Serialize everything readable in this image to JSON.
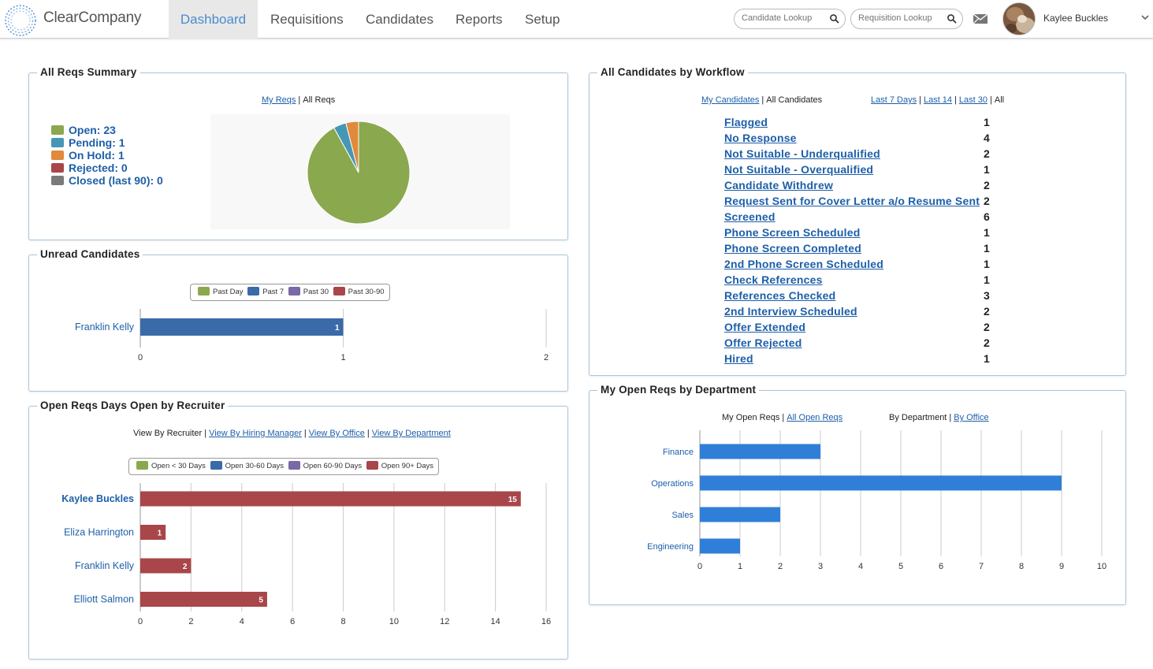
{
  "app": {
    "name": "ClearCompany"
  },
  "nav": {
    "items": [
      {
        "label": "Dashboard",
        "active": true
      },
      {
        "label": "Requisitions",
        "active": false
      },
      {
        "label": "Candidates",
        "active": false
      },
      {
        "label": "Reports",
        "active": false
      },
      {
        "label": "Setup",
        "active": false
      }
    ]
  },
  "header": {
    "candidate_lookup_placeholder": "Candidate Lookup",
    "requisition_lookup_placeholder": "Requisition Lookup",
    "user_name": "Kaylee Buckles"
  },
  "colors": {
    "accent": "#4a8ccf",
    "link": "#1d5fa8",
    "green": "#8aa84e",
    "teal": "#4697b5",
    "orange": "#e08a3c",
    "red": "#a8464a",
    "gray": "#7a7a7a",
    "blue": "#3b6aa8",
    "purple": "#7b68a6",
    "dept_bar": "#2f7fd8"
  },
  "reqs_summary": {
    "title": "All Reqs Summary",
    "filter": {
      "my_reqs": "My Reqs",
      "sep": "|",
      "all_reqs": "All Reqs"
    },
    "legend": [
      {
        "label": "Open: 23",
        "color": "#8aa84e"
      },
      {
        "label": "Pending: 1",
        "color": "#4697b5"
      },
      {
        "label": "On Hold: 1",
        "color": "#e08a3c"
      },
      {
        "label": "Rejected: 0",
        "color": "#a8464a"
      },
      {
        "label": "Closed (last 90): 0",
        "color": "#7a7a7a"
      }
    ],
    "chart_data": {
      "type": "pie",
      "title": "",
      "categories": [
        "Open",
        "Pending",
        "On Hold",
        "Rejected",
        "Closed (last 90)"
      ],
      "values": [
        23,
        1,
        1,
        0,
        0
      ]
    }
  },
  "unread": {
    "title": "Unread Candidates",
    "legend": [
      {
        "label": "Past Day",
        "color": "#8aa84e"
      },
      {
        "label": "Past 7",
        "color": "#3b6aa8"
      },
      {
        "label": "Past 30",
        "color": "#7b68a6"
      },
      {
        "label": "Past 30-90",
        "color": "#a8464a"
      }
    ],
    "chart_data": {
      "type": "bar",
      "orientation": "horizontal",
      "categories": [
        "Franklin Kelly"
      ],
      "series": [
        {
          "name": "Past 7",
          "values": [
            1
          ]
        }
      ],
      "xlim": [
        0,
        2
      ],
      "xticks": [
        "0",
        "1",
        "2"
      ],
      "data_labels": [
        "1"
      ]
    }
  },
  "days_open": {
    "title": "Open Reqs Days Open by Recruiter",
    "views": {
      "recruiter": "View By Recruiter",
      "hiring_manager": "View By Hiring Manager",
      "office": "View By Office",
      "department": "View By Department",
      "sep": "|"
    },
    "legend": [
      {
        "label": "Open < 30 Days",
        "color": "#8aa84e"
      },
      {
        "label": "Open 30-60 Days",
        "color": "#3b6aa8"
      },
      {
        "label": "Open 60-90 Days",
        "color": "#7b68a6"
      },
      {
        "label": "Open 90+ Days",
        "color": "#a8464a"
      }
    ],
    "chart_data": {
      "type": "bar",
      "orientation": "horizontal",
      "categories": [
        "Kaylee Buckles",
        "Eliza Harrington",
        "Franklin Kelly",
        "Elliott Salmon"
      ],
      "series": [
        {
          "name": "Open 90+ Days",
          "values": [
            15,
            1,
            2,
            5
          ]
        }
      ],
      "xlim": [
        0,
        16
      ],
      "xticks": [
        "0",
        "2",
        "4",
        "6",
        "8",
        "10",
        "12",
        "14",
        "16"
      ],
      "data_labels": [
        "15",
        "1",
        "2",
        "5"
      ]
    }
  },
  "workflow": {
    "title": "All Candidates by Workflow",
    "filters": {
      "my_candidates": "My Candidates",
      "all_candidates": "All Candidates",
      "last7": "Last 7 Days",
      "last14": "Last 14",
      "last30": "Last 30",
      "all": "All",
      "sep": "|"
    },
    "rows": [
      {
        "label": "Flagged",
        "count": "1"
      },
      {
        "label": "No Response",
        "count": "4"
      },
      {
        "label": "Not Suitable - Underqualified",
        "count": "2"
      },
      {
        "label": "Not Suitable - Overqualified",
        "count": "1"
      },
      {
        "label": "Candidate Withdrew",
        "count": "2"
      },
      {
        "label": "Request Sent for Cover Letter a/o Resume Sent",
        "count": "2"
      },
      {
        "label": "Screened",
        "count": "6"
      },
      {
        "label": "Phone Screen Scheduled",
        "count": "1"
      },
      {
        "label": "Phone Screen Completed",
        "count": "1"
      },
      {
        "label": "2nd Phone Screen Scheduled",
        "count": "1"
      },
      {
        "label": "Check References",
        "count": "1"
      },
      {
        "label": "References Checked",
        "count": "3"
      },
      {
        "label": "2nd Interview Scheduled",
        "count": "2"
      },
      {
        "label": "Offer Extended",
        "count": "2"
      },
      {
        "label": "Offer Rejected",
        "count": "2"
      },
      {
        "label": "Hired",
        "count": "1"
      }
    ]
  },
  "dept": {
    "title": "My Open Reqs by Department",
    "filters": {
      "my_open_reqs": "My Open Reqs",
      "all_open_reqs": "All Open Reqs",
      "by_department": "By Department",
      "by_office": "By Office",
      "sep": "|"
    },
    "chart_data": {
      "type": "bar",
      "orientation": "horizontal",
      "categories": [
        "Finance",
        "Operations",
        "Sales",
        "Engineering"
      ],
      "values": [
        3,
        9,
        2,
        1
      ],
      "xlim": [
        0,
        10
      ],
      "xticks": [
        "0",
        "1",
        "2",
        "3",
        "4",
        "5",
        "6",
        "7",
        "8",
        "9",
        "10"
      ]
    }
  }
}
